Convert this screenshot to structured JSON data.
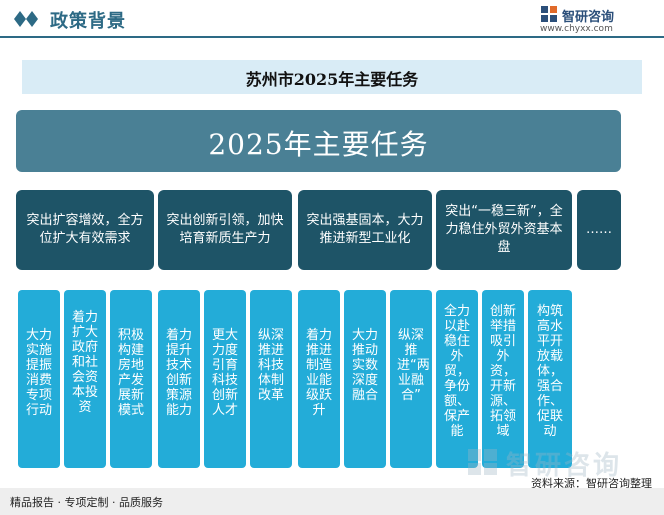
{
  "header": {
    "title": "政策背景",
    "brand_name": "智研咨询",
    "brand_url": "www.chyxx.com"
  },
  "subtitle": "苏州市2025年主要任务",
  "main_box": "2025年主要任务",
  "categories": [
    {
      "label": "突出扩容增效，全方位扩大有效需求"
    },
    {
      "label": "突出创新引领，加快培育新质生产力"
    },
    {
      "label": "突出强基固本，大力推进新型工业化"
    },
    {
      "label": "突出“一稳三新”，全力稳住外贸外资基本盘"
    },
    {
      "label": "……"
    }
  ],
  "tasks": [
    {
      "label": "大力实施提振消费专项行动"
    },
    {
      "label": "着力扩大政府和社会资本投资"
    },
    {
      "label": "积极构建房地产发展新模式"
    },
    {
      "label": "着力提升技术创新策源能力"
    },
    {
      "label": "更大力度引育科技创新人才"
    },
    {
      "label": "纵深推进科技体制改革"
    },
    {
      "label": "着力推进制造业能级跃升"
    },
    {
      "label": "大力推动实数深度融合"
    },
    {
      "label": "纵深推进“两业融合”"
    },
    {
      "label": "全力以赴稳住外贸，争份额、保产能"
    },
    {
      "label": "创新举措吸引外资，开新源、拓领域"
    },
    {
      "label": "构筑高水平开放载体，强合作、促联动"
    }
  ],
  "watermark": "智研咨询",
  "footer": {
    "left": "精品报告 · 专项定制 · 品质服务",
    "source": "资料来源：智研咨询整理"
  },
  "colors": {
    "header": "#2d6a85",
    "main_box": "#4a8095",
    "category": "#1e5467",
    "task": "#23acd8",
    "subtitle_band": "#d9ecf6"
  }
}
